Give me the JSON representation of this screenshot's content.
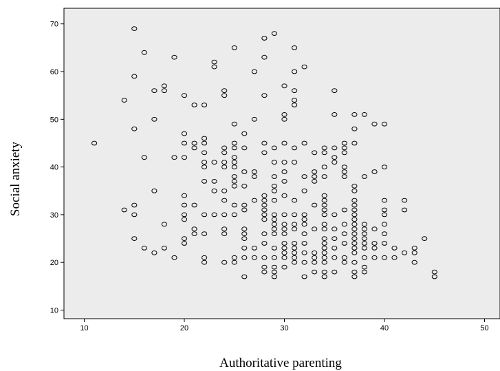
{
  "chart_data": {
    "type": "scatter",
    "title": "",
    "xlabel": "Authoritative parenting",
    "ylabel": "Social anxiety",
    "xlim": [
      8,
      51
    ],
    "ylim": [
      6,
      74
    ],
    "xticks": [
      10,
      20,
      30,
      40,
      50
    ],
    "yticks": [
      10,
      20,
      30,
      40,
      50,
      60,
      70
    ],
    "grid": false,
    "legend": "none",
    "colors": {
      "plot_background": "#ececec",
      "marker_stroke": "#000000",
      "frame": "#000000"
    },
    "series": [
      {
        "points": [
          [
            11,
            45
          ],
          [
            14,
            54
          ],
          [
            14,
            31
          ],
          [
            15,
            69
          ],
          [
            15,
            59
          ],
          [
            15,
            48
          ],
          [
            15,
            32
          ],
          [
            15,
            30
          ],
          [
            15,
            25
          ],
          [
            16,
            64
          ],
          [
            16,
            42
          ],
          [
            16,
            23
          ],
          [
            17,
            56
          ],
          [
            17,
            50
          ],
          [
            17,
            35
          ],
          [
            17,
            22
          ],
          [
            18,
            57
          ],
          [
            18,
            56
          ],
          [
            18,
            28
          ],
          [
            18,
            23
          ],
          [
            19,
            63
          ],
          [
            19,
            42
          ],
          [
            19,
            21
          ],
          [
            20,
            55
          ],
          [
            20,
            47
          ],
          [
            20,
            45
          ],
          [
            20,
            42
          ],
          [
            20,
            34
          ],
          [
            20,
            32
          ],
          [
            20,
            30
          ],
          [
            20,
            29
          ],
          [
            20,
            25
          ],
          [
            20,
            24
          ],
          [
            21,
            53
          ],
          [
            21,
            45
          ],
          [
            21,
            44
          ],
          [
            21,
            32
          ],
          [
            21,
            27
          ],
          [
            21,
            26
          ],
          [
            22,
            53
          ],
          [
            22,
            46
          ],
          [
            22,
            45
          ],
          [
            22,
            43
          ],
          [
            22,
            41
          ],
          [
            22,
            40
          ],
          [
            22,
            37
          ],
          [
            22,
            30
          ],
          [
            22,
            26
          ],
          [
            22,
            21
          ],
          [
            22,
            20
          ],
          [
            23,
            62
          ],
          [
            23,
            61
          ],
          [
            23,
            41
          ],
          [
            23,
            37
          ],
          [
            23,
            35
          ],
          [
            23,
            30
          ],
          [
            24,
            56
          ],
          [
            24,
            55
          ],
          [
            24,
            44
          ],
          [
            24,
            43
          ],
          [
            24,
            41
          ],
          [
            24,
            40
          ],
          [
            24,
            35
          ],
          [
            24,
            33
          ],
          [
            24,
            30
          ],
          [
            24,
            27
          ],
          [
            24,
            26
          ],
          [
            24,
            20
          ],
          [
            25,
            65
          ],
          [
            25,
            49
          ],
          [
            25,
            45
          ],
          [
            25,
            44
          ],
          [
            25,
            42
          ],
          [
            25,
            41
          ],
          [
            25,
            40
          ],
          [
            25,
            38
          ],
          [
            25,
            37
          ],
          [
            25,
            36
          ],
          [
            25,
            32
          ],
          [
            25,
            30
          ],
          [
            25,
            21
          ],
          [
            25,
            20
          ],
          [
            26,
            47
          ],
          [
            26,
            44
          ],
          [
            26,
            39
          ],
          [
            26,
            36
          ],
          [
            26,
            32
          ],
          [
            26,
            31
          ],
          [
            26,
            27
          ],
          [
            26,
            26
          ],
          [
            26,
            25
          ],
          [
            26,
            23
          ],
          [
            26,
            21
          ],
          [
            26,
            17
          ],
          [
            27,
            60
          ],
          [
            27,
            50
          ],
          [
            27,
            39
          ],
          [
            27,
            38
          ],
          [
            27,
            33
          ],
          [
            27,
            23
          ],
          [
            27,
            21
          ],
          [
            28,
            67
          ],
          [
            28,
            63
          ],
          [
            28,
            55
          ],
          [
            28,
            45
          ],
          [
            28,
            43
          ],
          [
            28,
            34
          ],
          [
            28,
            33
          ],
          [
            28,
            32
          ],
          [
            28,
            31
          ],
          [
            28,
            30
          ],
          [
            28,
            29
          ],
          [
            28,
            26
          ],
          [
            28,
            24
          ],
          [
            28,
            21
          ],
          [
            28,
            19
          ],
          [
            28,
            18
          ],
          [
            29,
            68
          ],
          [
            29,
            44
          ],
          [
            29,
            41
          ],
          [
            29,
            38
          ],
          [
            29,
            36
          ],
          [
            29,
            35
          ],
          [
            29,
            33
          ],
          [
            29,
            30
          ],
          [
            29,
            29
          ],
          [
            29,
            28
          ],
          [
            29,
            27
          ],
          [
            29,
            26
          ],
          [
            29,
            23
          ],
          [
            29,
            21
          ],
          [
            29,
            19
          ],
          [
            29,
            18
          ],
          [
            29,
            17
          ],
          [
            30,
            57
          ],
          [
            30,
            51
          ],
          [
            30,
            50
          ],
          [
            30,
            45
          ],
          [
            30,
            41
          ],
          [
            30,
            39
          ],
          [
            30,
            37
          ],
          [
            30,
            34
          ],
          [
            30,
            30
          ],
          [
            30,
            28
          ],
          [
            30,
            27
          ],
          [
            30,
            26
          ],
          [
            30,
            24
          ],
          [
            30,
            23
          ],
          [
            30,
            22
          ],
          [
            30,
            21
          ],
          [
            30,
            19
          ],
          [
            31,
            65
          ],
          [
            31,
            60
          ],
          [
            31,
            56
          ],
          [
            31,
            54
          ],
          [
            31,
            53
          ],
          [
            31,
            44
          ],
          [
            31,
            41
          ],
          [
            31,
            33
          ],
          [
            31,
            30
          ],
          [
            31,
            28
          ],
          [
            31,
            27
          ],
          [
            31,
            24
          ],
          [
            31,
            23
          ],
          [
            31,
            22
          ],
          [
            31,
            21
          ],
          [
            31,
            20
          ],
          [
            32,
            61
          ],
          [
            32,
            45
          ],
          [
            32,
            38
          ],
          [
            32,
            35
          ],
          [
            32,
            30
          ],
          [
            32,
            29
          ],
          [
            32,
            28
          ],
          [
            32,
            26
          ],
          [
            32,
            24
          ],
          [
            32,
            22
          ],
          [
            32,
            20
          ],
          [
            32,
            17
          ],
          [
            33,
            43
          ],
          [
            33,
            39
          ],
          [
            33,
            38
          ],
          [
            33,
            37
          ],
          [
            33,
            32
          ],
          [
            33,
            27
          ],
          [
            33,
            22
          ],
          [
            33,
            21
          ],
          [
            33,
            20
          ],
          [
            33,
            18
          ],
          [
            34,
            44
          ],
          [
            34,
            43
          ],
          [
            34,
            40
          ],
          [
            34,
            38
          ],
          [
            34,
            34
          ],
          [
            34,
            33
          ],
          [
            34,
            32
          ],
          [
            34,
            31
          ],
          [
            34,
            30
          ],
          [
            34,
            28
          ],
          [
            34,
            27
          ],
          [
            34,
            25
          ],
          [
            34,
            24
          ],
          [
            34,
            23
          ],
          [
            34,
            22
          ],
          [
            34,
            21
          ],
          [
            34,
            20
          ],
          [
            34,
            18
          ],
          [
            34,
            17
          ],
          [
            35,
            56
          ],
          [
            35,
            51
          ],
          [
            35,
            44
          ],
          [
            35,
            42
          ],
          [
            35,
            41
          ],
          [
            35,
            30
          ],
          [
            35,
            27
          ],
          [
            35,
            25
          ],
          [
            35,
            23
          ],
          [
            35,
            21
          ],
          [
            35,
            18
          ],
          [
            36,
            45
          ],
          [
            36,
            44
          ],
          [
            36,
            43
          ],
          [
            36,
            40
          ],
          [
            36,
            39
          ],
          [
            36,
            38
          ],
          [
            36,
            31
          ],
          [
            36,
            28
          ],
          [
            36,
            26
          ],
          [
            36,
            24
          ],
          [
            36,
            21
          ],
          [
            36,
            20
          ],
          [
            37,
            51
          ],
          [
            37,
            48
          ],
          [
            37,
            45
          ],
          [
            37,
            36
          ],
          [
            37,
            35
          ],
          [
            37,
            33
          ],
          [
            37,
            32
          ],
          [
            37,
            31
          ],
          [
            37,
            30
          ],
          [
            37,
            29
          ],
          [
            37,
            28
          ],
          [
            37,
            27
          ],
          [
            37,
            26
          ],
          [
            37,
            25
          ],
          [
            37,
            24
          ],
          [
            37,
            23
          ],
          [
            37,
            22
          ],
          [
            37,
            20
          ],
          [
            37,
            18
          ],
          [
            37,
            17
          ],
          [
            38,
            51
          ],
          [
            38,
            38
          ],
          [
            38,
            28
          ],
          [
            38,
            27
          ],
          [
            38,
            26
          ],
          [
            38,
            25
          ],
          [
            38,
            24
          ],
          [
            38,
            23
          ],
          [
            38,
            21
          ],
          [
            38,
            19
          ],
          [
            38,
            18
          ],
          [
            39,
            49
          ],
          [
            39,
            39
          ],
          [
            39,
            27
          ],
          [
            39,
            24
          ],
          [
            39,
            23
          ],
          [
            39,
            21
          ],
          [
            40,
            49
          ],
          [
            40,
            40
          ],
          [
            40,
            33
          ],
          [
            40,
            31
          ],
          [
            40,
            30
          ],
          [
            40,
            28
          ],
          [
            40,
            26
          ],
          [
            40,
            24
          ],
          [
            40,
            21
          ],
          [
            41,
            23
          ],
          [
            41,
            21
          ],
          [
            42,
            33
          ],
          [
            42,
            31
          ],
          [
            42,
            22
          ],
          [
            43,
            23
          ],
          [
            43,
            22
          ],
          [
            43,
            20
          ],
          [
            44,
            25
          ],
          [
            45,
            18
          ],
          [
            45,
            17
          ]
        ]
      }
    ]
  }
}
